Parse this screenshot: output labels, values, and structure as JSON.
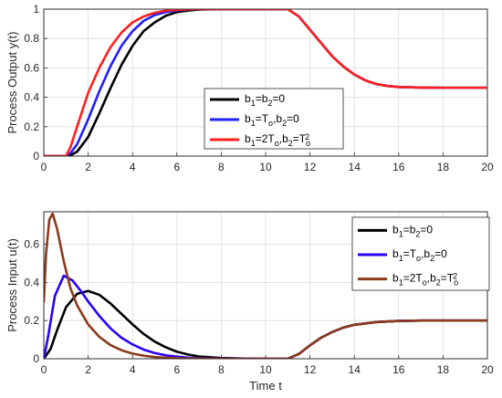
{
  "chart_data": [
    {
      "type": "line",
      "ylabel": "Process Output y(t)",
      "xlabel": "",
      "xlim": [
        0,
        20
      ],
      "ylim": [
        0,
        1
      ],
      "xticks": [
        "0",
        "2",
        "4",
        "6",
        "8",
        "10",
        "12",
        "14",
        "16",
        "18",
        "20"
      ],
      "yticks": [
        "0",
        "0.2",
        "0.4",
        "0.6",
        "0.8",
        "1"
      ],
      "grid": true,
      "legend_position": "center",
      "legend": [
        {
          "sub": [
            "b",
            "1",
            "=b",
            "2",
            "=0"
          ]
        },
        {
          "sub": [
            "b",
            "1",
            "=T",
            "o",
            ",b",
            "2",
            "=0"
          ]
        },
        {
          "sub": [
            "b",
            "1",
            "=2T",
            "o",
            ",b",
            "2",
            "=T",
            "o",
            "2"
          ]
        }
      ],
      "series": [
        {
          "color": "#000000",
          "x": [
            0,
            1.0,
            1.2,
            1.5,
            2.0,
            2.5,
            3.0,
            3.5,
            4.0,
            4.5,
            5.0,
            5.5,
            6.0,
            6.5,
            7.0,
            8.0,
            9.0,
            10.0,
            11.0,
            11.5,
            12.0,
            12.5,
            13.0,
            13.5,
            14.0,
            14.5,
            15.0,
            15.5,
            16.0,
            17.0,
            18.0,
            19.0,
            20.0
          ],
          "y": [
            0,
            0,
            0.005,
            0.03,
            0.13,
            0.29,
            0.46,
            0.62,
            0.75,
            0.85,
            0.91,
            0.955,
            0.98,
            0.99,
            0.997,
            1.0,
            1.0,
            1.0,
            1.0,
            0.95,
            0.86,
            0.77,
            0.68,
            0.61,
            0.555,
            0.515,
            0.49,
            0.477,
            0.47,
            0.466,
            0.465,
            0.465,
            0.465
          ]
        },
        {
          "color": "#1f1fff",
          "x": [
            0,
            1.0,
            1.2,
            1.5,
            2.0,
            2.5,
            3.0,
            3.5,
            4.0,
            4.5,
            5.0,
            5.5,
            6.0,
            6.5,
            7.0,
            8.0,
            9.0,
            10.0,
            11.0,
            11.5,
            12.0,
            12.5,
            13.0,
            13.5,
            14.0,
            14.5,
            15.0,
            15.5,
            16.0,
            17.0,
            18.0,
            19.0,
            20.0
          ],
          "y": [
            0,
            0,
            0.02,
            0.08,
            0.25,
            0.44,
            0.61,
            0.75,
            0.85,
            0.92,
            0.96,
            0.98,
            0.992,
            0.997,
            1.0,
            1.0,
            1.0,
            1.0,
            1.0,
            0.95,
            0.86,
            0.77,
            0.68,
            0.61,
            0.555,
            0.515,
            0.49,
            0.477,
            0.47,
            0.466,
            0.465,
            0.465,
            0.465
          ]
        },
        {
          "color": "#ff1f1f",
          "x": [
            0,
            1.0,
            1.2,
            1.5,
            2.0,
            2.5,
            3.0,
            3.5,
            4.0,
            4.5,
            5.0,
            5.5,
            6.0,
            6.5,
            7.0,
            8.0,
            9.0,
            10.0,
            11.0,
            11.5,
            12.0,
            12.5,
            13.0,
            13.5,
            14.0,
            14.5,
            15.0,
            15.5,
            16.0,
            17.0,
            18.0,
            19.0,
            20.0
          ],
          "y": [
            0,
            0,
            0.06,
            0.2,
            0.43,
            0.6,
            0.74,
            0.84,
            0.91,
            0.95,
            0.975,
            0.99,
            0.995,
            0.999,
            1.0,
            1.0,
            1.0,
            1.0,
            1.0,
            0.95,
            0.86,
            0.77,
            0.68,
            0.61,
            0.555,
            0.515,
            0.49,
            0.477,
            0.47,
            0.466,
            0.465,
            0.465,
            0.465
          ]
        }
      ]
    },
    {
      "type": "line",
      "ylabel": "Process Input u(t)",
      "xlabel": "Time t",
      "xlim": [
        0,
        20
      ],
      "ylim": [
        0,
        0.77
      ],
      "xticks": [
        "0",
        "2",
        "4",
        "6",
        "8",
        "10",
        "12",
        "14",
        "16",
        "18",
        "20"
      ],
      "yticks": [
        "0",
        "0.2",
        "0.4",
        "0.6"
      ],
      "grid": true,
      "legend_position": "top-right",
      "legend": [
        {
          "sub": [
            "b",
            "1",
            "=b",
            "2",
            "=0"
          ]
        },
        {
          "sub": [
            "b",
            "1",
            "=T",
            "o",
            ",b",
            "2",
            "=0"
          ]
        },
        {
          "sub": [
            "b",
            "1",
            "=2T",
            "o",
            ",b",
            "2",
            "=T",
            "o",
            "2"
          ]
        }
      ],
      "series": [
        {
          "color": "#000000",
          "x": [
            0,
            0.3,
            0.6,
            1.0,
            1.5,
            2.0,
            2.5,
            3.0,
            3.5,
            4.0,
            4.5,
            5.0,
            5.5,
            6.0,
            6.5,
            7.0,
            8.0,
            9.0,
            10.0,
            11.0,
            11.5,
            12.0,
            12.5,
            13.0,
            13.5,
            14.0,
            15.0,
            16.0,
            17.0,
            18.0,
            19.0,
            20.0
          ],
          "y": [
            0,
            0.05,
            0.15,
            0.27,
            0.34,
            0.355,
            0.335,
            0.29,
            0.235,
            0.18,
            0.13,
            0.09,
            0.06,
            0.037,
            0.022,
            0.012,
            0.004,
            0.001,
            0.0,
            0.0,
            0.025,
            0.07,
            0.11,
            0.14,
            0.163,
            0.178,
            0.192,
            0.198,
            0.2,
            0.2,
            0.2,
            0.2
          ]
        },
        {
          "color": "#2a00ff",
          "x": [
            0,
            0.2,
            0.5,
            0.9,
            1.3,
            1.7,
            2.0,
            2.5,
            3.0,
            3.5,
            4.0,
            4.5,
            5.0,
            5.5,
            6.0,
            6.5,
            7.0,
            8.0,
            9.0,
            10.0,
            11.0,
            11.5,
            12.0,
            12.5,
            13.0,
            13.5,
            14.0,
            15.0,
            16.0,
            17.0,
            18.0,
            19.0,
            20.0
          ],
          "y": [
            0,
            0.12,
            0.33,
            0.435,
            0.41,
            0.35,
            0.3,
            0.225,
            0.16,
            0.11,
            0.075,
            0.048,
            0.03,
            0.018,
            0.011,
            0.006,
            0.003,
            0.001,
            0.0,
            0.0,
            0.0,
            0.025,
            0.07,
            0.11,
            0.14,
            0.163,
            0.178,
            0.192,
            0.198,
            0.2,
            0.2,
            0.2,
            0.2
          ]
        },
        {
          "color": "#8b3a1a",
          "x": [
            0,
            0.1,
            0.25,
            0.4,
            0.6,
            0.9,
            1.2,
            1.5,
            2.0,
            2.5,
            3.0,
            3.5,
            4.0,
            4.5,
            5.0,
            5.5,
            6.0,
            7.0,
            8.0,
            9.0,
            10.0,
            11.0,
            11.5,
            12.0,
            12.5,
            13.0,
            13.5,
            14.0,
            15.0,
            16.0,
            17.0,
            18.0,
            19.0,
            20.0
          ],
          "y": [
            0.3,
            0.55,
            0.73,
            0.76,
            0.68,
            0.51,
            0.37,
            0.28,
            0.18,
            0.115,
            0.072,
            0.045,
            0.027,
            0.016,
            0.009,
            0.005,
            0.003,
            0.001,
            0.0,
            0.0,
            0.0,
            0.0,
            0.025,
            0.07,
            0.11,
            0.14,
            0.163,
            0.178,
            0.192,
            0.198,
            0.2,
            0.2,
            0.2,
            0.2
          ]
        }
      ]
    }
  ]
}
